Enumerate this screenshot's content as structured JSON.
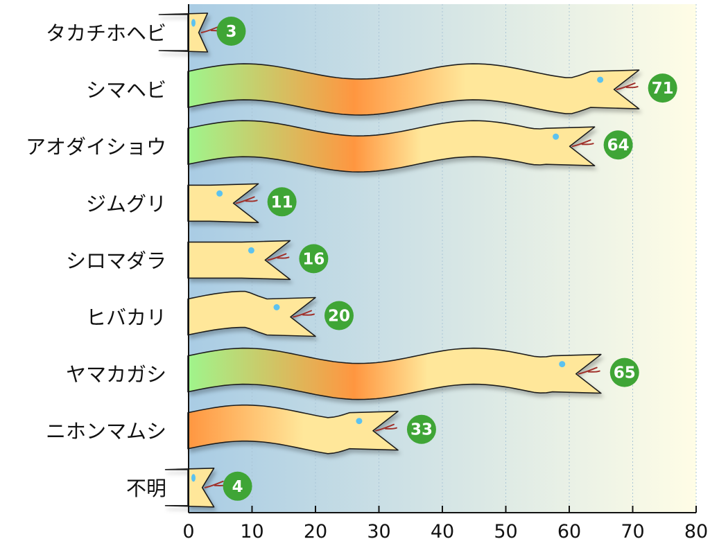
{
  "chart_data": {
    "type": "bar",
    "categories": [
      "タカチホヘビ",
      "シマヘビ",
      "アオダイショウ",
      "ジムグリ",
      "シロマダラ",
      "ヒバカリ",
      "ヤマカガシ",
      "ニホンマムシ",
      "不明"
    ],
    "values": [
      3,
      71,
      64,
      11,
      16,
      20,
      65,
      33,
      4
    ],
    "xlim": [
      0,
      80
    ],
    "xticks": [
      0,
      10,
      20,
      30,
      40,
      50,
      60,
      70,
      80
    ],
    "orientation": "horizontal",
    "grid": true,
    "title": "",
    "xlabel": "",
    "ylabel": ""
  },
  "colors": {
    "bg_left": "#a9cce4",
    "bg_right": "#fffde6",
    "gridline": "#aac5d6",
    "body_green": "#9ff58c",
    "body_orange": "#ff9640",
    "body_cream": "#ffe79a",
    "outline": "#1e1e1e",
    "badge": "#3fa536",
    "badge_text": "#ffffff",
    "tongue": "#a0302a",
    "eye": "#5cc2ef"
  }
}
